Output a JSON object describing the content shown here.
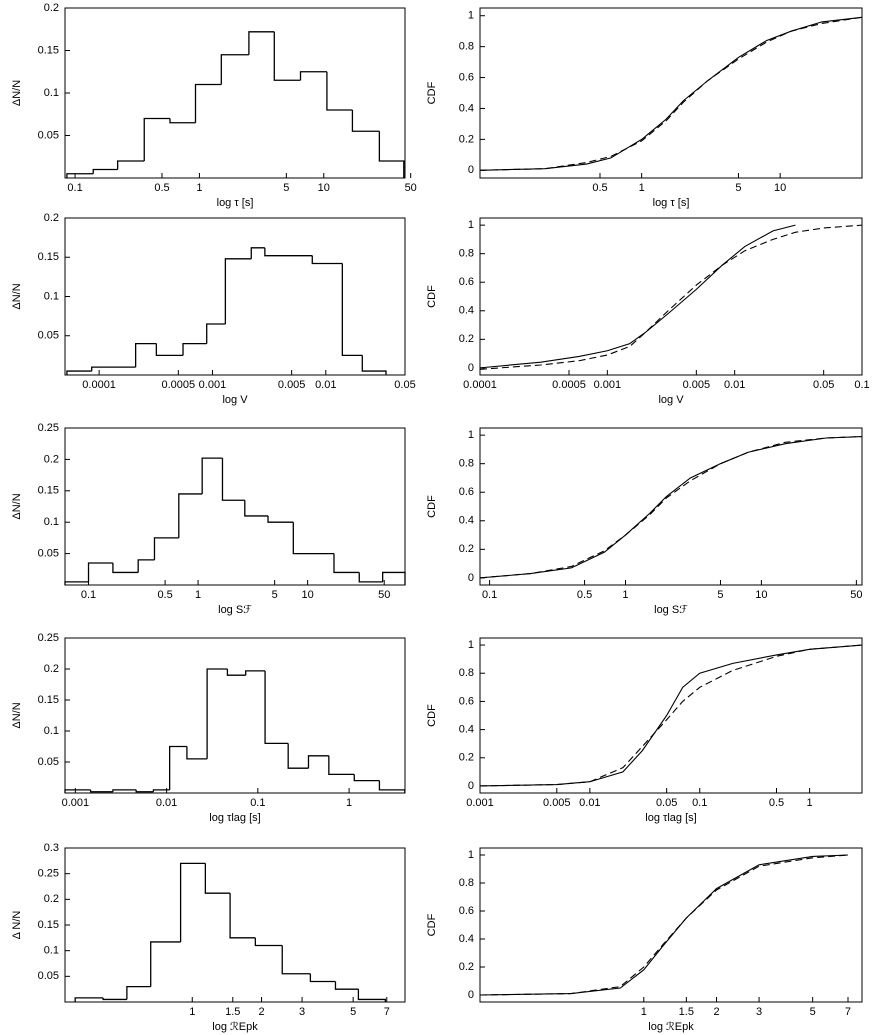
{
  "chart_data": [
    {
      "type": "histogram",
      "xlabel": "log τ [s]",
      "ylabel": "ΔN/N",
      "xscale": "log",
      "color": "#000000",
      "bins": [
        0.086,
        0.14,
        0.22,
        0.36,
        0.58,
        0.93,
        1.5,
        2.5,
        4,
        6.5,
        10.6,
        17,
        28,
        44
      ],
      "values": [
        0.005,
        0.01,
        0.02,
        0.07,
        0.065,
        0.11,
        0.145,
        0.172,
        0.115,
        0.125,
        0.08,
        0.055,
        0.02
      ],
      "xlim": [
        0.083,
        45
      ],
      "xticks": [
        0.1,
        0.5,
        1,
        5,
        10,
        50
      ],
      "ylim": [
        0,
        0.2
      ],
      "yticks": [
        0.05,
        0.1,
        0.15,
        0.2
      ]
    },
    {
      "type": "line",
      "xlabel": "log τ [s]",
      "ylabel": "CDF",
      "xscale": "log",
      "x": [
        0.068,
        0.2,
        0.4,
        0.6,
        1,
        1.5,
        2,
        3,
        5,
        8,
        12,
        20,
        39
      ],
      "series": [
        {
          "color": "#000000",
          "dash": false,
          "values": [
            0,
            0.01,
            0.04,
            0.08,
            0.2,
            0.33,
            0.45,
            0.58,
            0.73,
            0.84,
            0.9,
            0.96,
            0.99
          ]
        },
        {
          "color": "#000000",
          "dash": true,
          "values": [
            0,
            0.01,
            0.05,
            0.09,
            0.19,
            0.32,
            0.44,
            0.58,
            0.72,
            0.83,
            0.9,
            0.95,
            0.99
          ]
        }
      ],
      "xlim": [
        0.068,
        39
      ],
      "xticks": [
        0.5,
        1,
        5,
        10
      ],
      "ylim": [
        -0.05,
        1.05
      ],
      "yticks": [
        0,
        0.2,
        0.4,
        0.6,
        0.8,
        1
      ]
    },
    {
      "type": "histogram",
      "xlabel": "log V",
      "ylabel": "ΔN/N",
      "xscale": "log",
      "color": "#000000",
      "bins": [
        5.2e-05,
        8.6e-05,
        0.00021,
        0.00032,
        0.00055,
        0.00089,
        0.0013,
        0.0022,
        0.0029,
        0.0076,
        0.014,
        0.021,
        0.034
      ],
      "values": [
        0.005,
        0.01,
        0.04,
        0.025,
        0.04,
        0.065,
        0.148,
        0.162,
        0.152,
        0.142,
        0.025,
        0.005
      ],
      "xlim": [
        5e-05,
        0.05
      ],
      "xticks": [
        0.0001,
        0.0005,
        0.001,
        0.005,
        0.01,
        0.05
      ],
      "ylim": [
        0,
        0.2
      ],
      "yticks": [
        0.05,
        0.1,
        0.15,
        0.2
      ]
    },
    {
      "type": "line",
      "xlabel": "log V",
      "ylabel": "CDF",
      "xscale": "log",
      "x": [
        0.0001,
        0.0003,
        0.0006,
        0.001,
        0.0015,
        0.002,
        0.003,
        0.005,
        0.008,
        0.012,
        0.02,
        0.03,
        0.05,
        0.1
      ],
      "series": [
        {
          "color": "#000000",
          "dash": false,
          "values": [
            0,
            0.04,
            0.08,
            0.12,
            0.17,
            0.25,
            0.38,
            0.55,
            0.72,
            0.85,
            0.96,
            1,
            null,
            null
          ]
        },
        {
          "color": "#000000",
          "dash": true,
          "values": [
            -0.01,
            0.02,
            0.05,
            0.09,
            0.15,
            0.25,
            0.4,
            0.58,
            0.72,
            0.82,
            0.9,
            0.95,
            0.98,
            1
          ]
        }
      ],
      "xlim": [
        0.0001,
        0.1
      ],
      "xticks": [
        0.0001,
        0.0005,
        0.001,
        0.005,
        0.01,
        0.05,
        0.1
      ],
      "ylim": [
        -0.05,
        1.05
      ],
      "yticks": [
        0,
        0.2,
        0.4,
        0.6,
        0.8,
        1
      ]
    },
    {
      "type": "histogram",
      "xlabel": "log Sℱ",
      "ylabel": "ΔN/N",
      "xscale": "log",
      "color": "#000000",
      "bins": [
        0.061,
        0.1,
        0.167,
        0.284,
        0.4,
        0.667,
        1.09,
        1.67,
        2.67,
        4.35,
        7.4,
        17.4,
        29.6,
        48.4,
        77.4
      ],
      "values": [
        0.005,
        0.035,
        0.02,
        0.04,
        0.075,
        0.145,
        0.202,
        0.135,
        0.11,
        0.1,
        0.05,
        0.02,
        0.005,
        0.02
      ],
      "xlim": [
        0.061,
        77.4
      ],
      "xticks": [
        0.1,
        0.5,
        1,
        5,
        10,
        50
      ],
      "ylim": [
        0,
        0.25
      ],
      "yticks": [
        0.05,
        0.1,
        0.15,
        0.2,
        0.25
      ]
    },
    {
      "type": "line",
      "xlabel": "log Sℱ",
      "ylabel": "CDF",
      "xscale": "log",
      "x": [
        0.085,
        0.2,
        0.4,
        0.7,
        1,
        1.5,
        2,
        3,
        5,
        8,
        15,
        30,
        55
      ],
      "series": [
        {
          "color": "#000000",
          "dash": false,
          "values": [
            0,
            0.03,
            0.07,
            0.18,
            0.3,
            0.45,
            0.57,
            0.7,
            0.8,
            0.88,
            0.94,
            0.98,
            0.99
          ]
        },
        {
          "color": "#000000",
          "dash": true,
          "values": [
            0,
            0.03,
            0.08,
            0.19,
            0.3,
            0.44,
            0.56,
            0.68,
            0.8,
            0.88,
            0.95,
            0.98,
            0.99
          ]
        }
      ],
      "xlim": [
        0.085,
        55
      ],
      "xticks": [
        0.1,
        0.5,
        1,
        5,
        10,
        50
      ],
      "ylim": [
        -0.05,
        1.05
      ],
      "yticks": [
        0,
        0.2,
        0.4,
        0.6,
        0.8,
        1
      ]
    },
    {
      "type": "histogram",
      "xlabel": "log τlag [s]",
      "ylabel": "ΔN/N",
      "xscale": "log",
      "color": "#000000",
      "bins": [
        0.00077,
        0.00147,
        0.00258,
        0.00464,
        0.00717,
        0.0108,
        0.0167,
        0.0278,
        0.0464,
        0.0736,
        0.12,
        0.215,
        0.359,
        0.6,
        1.14,
        2.15,
        4.08
      ],
      "values": [
        0.005,
        0.002,
        0.005,
        0.002,
        0.005,
        0.075,
        0.055,
        0.2,
        0.19,
        0.197,
        0.08,
        0.04,
        0.06,
        0.03,
        0.02,
        0.005
      ],
      "xlim": [
        0.00077,
        4.1
      ],
      "xticks": [
        0.001,
        0.01,
        0.1,
        1
      ],
      "ylim": [
        0,
        0.25
      ],
      "yticks": [
        0.05,
        0.1,
        0.15,
        0.2,
        0.25
      ]
    },
    {
      "type": "line",
      "xlabel": "log τlag [s]",
      "ylabel": "CDF",
      "xscale": "log",
      "x": [
        0.001,
        0.005,
        0.01,
        0.02,
        0.03,
        0.05,
        0.07,
        0.1,
        0.2,
        0.5,
        1,
        3
      ],
      "series": [
        {
          "color": "#000000",
          "dash": false,
          "values": [
            0,
            0.01,
            0.03,
            0.1,
            0.25,
            0.5,
            0.7,
            0.8,
            0.87,
            0.93,
            0.97,
            1
          ]
        },
        {
          "color": "#000000",
          "dash": true,
          "values": [
            0,
            0.01,
            0.03,
            0.13,
            0.28,
            0.47,
            0.6,
            0.7,
            0.82,
            0.92,
            0.97,
            1
          ]
        }
      ],
      "xlim": [
        0.001,
        3
      ],
      "xticks": [
        0.001,
        0.005,
        0.01,
        0.05,
        0.1,
        0.5,
        1
      ],
      "ylim": [
        -0.05,
        1.05
      ],
      "yticks": [
        0,
        0.2,
        0.4,
        0.6,
        0.8,
        1
      ]
    },
    {
      "type": "histogram",
      "xlabel": "log ℛEpk",
      "ylabel": "Δ N/N",
      "xscale": "log",
      "color": "#000000",
      "bins": [
        0.31,
        0.41,
        0.52,
        0.66,
        0.89,
        1.14,
        1.46,
        1.88,
        2.46,
        3.26,
        4.19,
        5.27,
        6.9
      ],
      "values": [
        0.008,
        0.005,
        0.03,
        0.117,
        0.27,
        0.212,
        0.125,
        0.11,
        0.055,
        0.04,
        0.025,
        0.005
      ],
      "xlim": [
        0.28,
        8.4
      ],
      "xticks": [
        1,
        1.5,
        2,
        3,
        5,
        7
      ],
      "ylim": [
        0,
        0.3
      ],
      "yticks": [
        0.05,
        0.1,
        0.15,
        0.2,
        0.25,
        0.3
      ]
    },
    {
      "type": "line",
      "xlabel": "log ℛEpk",
      "ylabel": "CDF",
      "xscale": "log",
      "x": [
        0.21,
        0.5,
        0.8,
        1,
        1.2,
        1.5,
        2,
        3,
        5,
        7
      ],
      "series": [
        {
          "color": "#000000",
          "dash": false,
          "values": [
            0,
            0.01,
            0.05,
            0.18,
            0.35,
            0.55,
            0.76,
            0.93,
            0.99,
            1
          ]
        },
        {
          "color": "#000000",
          "dash": true,
          "values": [
            0,
            0.01,
            0.06,
            0.2,
            0.36,
            0.55,
            0.75,
            0.92,
            0.98,
            1
          ]
        }
      ],
      "xlim": [
        0.21,
        8
      ],
      "xticks": [
        1,
        1.5,
        2,
        3,
        5,
        7
      ],
      "ylim": [
        -0.05,
        1.05
      ],
      "yticks": [
        0,
        0.2,
        0.4,
        0.6,
        0.8,
        1
      ]
    }
  ]
}
